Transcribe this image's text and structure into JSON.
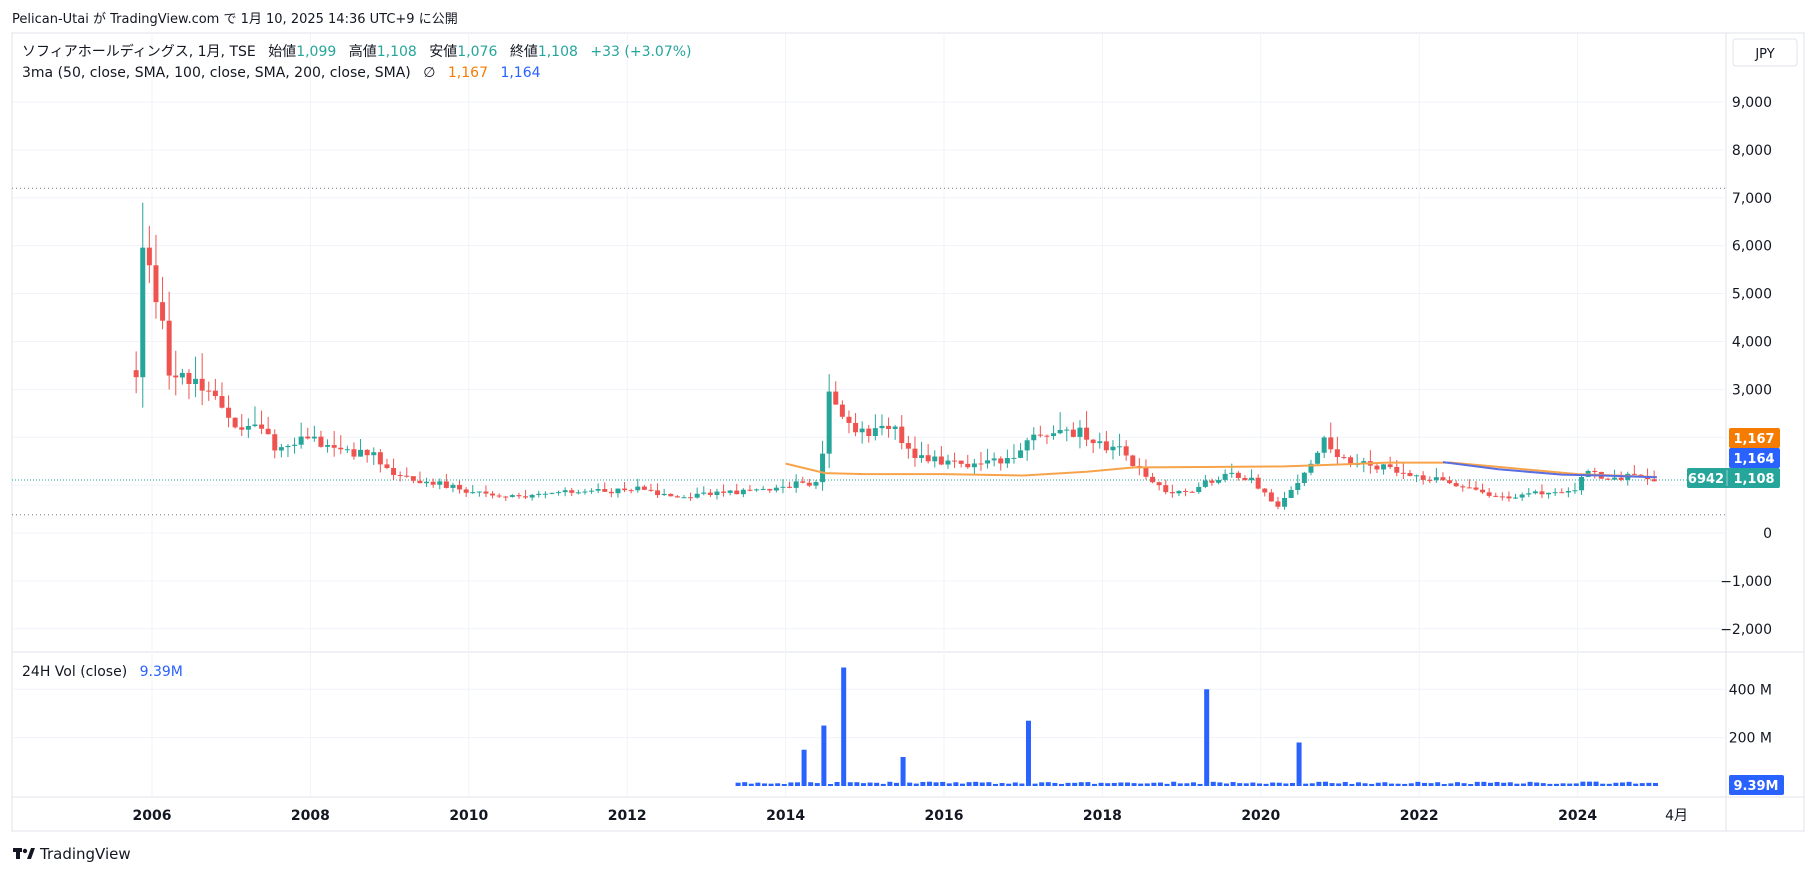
{
  "header": {
    "publish_line": "Pelican-Utai が TradingView.com で 1月 10, 2025 14:36 UTC+9 に公開"
  },
  "legend": {
    "symbol": "ソフィアホールディングス, 1月, TSE",
    "open_label": "始値",
    "open": "1,099",
    "high_label": "高値",
    "high": "1,108",
    "low_label": "安値",
    "low": "1,076",
    "close_label": "終値",
    "close": "1,108",
    "change": "+33 (+3.07%)",
    "ma_title": "3ma (50, close, SMA, 100, close, SMA, 200, close, SMA)",
    "ma_hidden_glyph": "∅",
    "ma1_value": "1,167",
    "ma2_value": "1,164"
  },
  "currency_button": "JPY",
  "price_badges": {
    "ma1": "1,167",
    "ma2": "1,164",
    "last_price": "1,108",
    "countdown": "6942"
  },
  "volume_panel": {
    "label": "24H Vol (close)",
    "value": "9.39M",
    "badge": "9.39M",
    "ticks": [
      "400 M",
      "200 M"
    ]
  },
  "footer": {
    "logo_text": "TradingView"
  },
  "colors": {
    "up": "#26a69a",
    "down": "#ef5350",
    "ma1": "#f7a34a",
    "ma2": "#5b6ee1",
    "volume": "#2962ff",
    "grid": "#f0f3fa",
    "text": "#131722"
  },
  "chart_data": {
    "type": "candlestick",
    "interval": "1M",
    "price_axis": {
      "ticks": [
        "9,000",
        "8,000",
        "7,000",
        "6,000",
        "5,000",
        "4,000",
        "3,000",
        "0",
        "−1,000",
        "−2,000"
      ],
      "range": [
        -2000,
        9000
      ]
    },
    "time_axis": {
      "ticks": [
        "2006",
        "2008",
        "2010",
        "2012",
        "2014",
        "2016",
        "2018",
        "2020",
        "2022",
        "2024",
        "4月"
      ],
      "range": [
        2004.5,
        2025.6
      ]
    },
    "price_keypoints": [
      [
        2005.8,
        3400
      ],
      [
        2005.85,
        6000
      ],
      [
        2005.95,
        5800
      ],
      [
        2006.0,
        4600
      ],
      [
        2006.1,
        4900
      ],
      [
        2006.2,
        3500
      ],
      [
        2006.4,
        3400
      ],
      [
        2006.6,
        3100
      ],
      [
        2006.8,
        2700
      ],
      [
        2007.0,
        2300
      ],
      [
        2007.3,
        2200
      ],
      [
        2007.6,
        1750
      ],
      [
        2007.9,
        1950
      ],
      [
        2008.2,
        1900
      ],
      [
        2008.4,
        1650
      ],
      [
        2008.8,
        1700
      ],
      [
        2009.0,
        1250
      ],
      [
        2009.3,
        1100
      ],
      [
        2009.6,
        1050
      ],
      [
        2009.9,
        920
      ],
      [
        2010.2,
        800
      ],
      [
        2010.6,
        750
      ],
      [
        2010.9,
        780
      ],
      [
        2011.2,
        850
      ],
      [
        2011.5,
        900
      ],
      [
        2011.8,
        880
      ],
      [
        2012.1,
        940
      ],
      [
        2012.4,
        820
      ],
      [
        2012.7,
        760
      ],
      [
        2013.0,
        830
      ],
      [
        2013.4,
        860
      ],
      [
        2013.8,
        900
      ],
      [
        2014.2,
        1050
      ],
      [
        2014.45,
        1050
      ],
      [
        2014.5,
        3050
      ],
      [
        2014.6,
        2600
      ],
      [
        2014.8,
        2200
      ],
      [
        2015.0,
        2100
      ],
      [
        2015.4,
        2150
      ],
      [
        2015.6,
        1650
      ],
      [
        2015.9,
        1500
      ],
      [
        2016.2,
        1450
      ],
      [
        2016.5,
        1450
      ],
      [
        2016.9,
        1600
      ],
      [
        2017.1,
        2000
      ],
      [
        2017.4,
        2150
      ],
      [
        2017.7,
        2100
      ],
      [
        2017.9,
        1900
      ],
      [
        2018.2,
        1750
      ],
      [
        2018.5,
        1250
      ],
      [
        2018.8,
        880
      ],
      [
        2019.1,
        850
      ],
      [
        2019.3,
        1050
      ],
      [
        2019.6,
        1200
      ],
      [
        2019.9,
        1100
      ],
      [
        2020.2,
        550
      ],
      [
        2020.4,
        900
      ],
      [
        2020.6,
        1450
      ],
      [
        2020.8,
        1900
      ],
      [
        2021.0,
        1550
      ],
      [
        2021.3,
        1450
      ],
      [
        2021.5,
        1400
      ],
      [
        2021.8,
        1200
      ],
      [
        2022.1,
        1150
      ],
      [
        2022.4,
        1050
      ],
      [
        2022.7,
        950
      ],
      [
        2023.0,
        720
      ],
      [
        2023.3,
        800
      ],
      [
        2023.6,
        850
      ],
      [
        2023.9,
        850
      ],
      [
        2024.0,
        920
      ],
      [
        2024.1,
        1300
      ],
      [
        2024.3,
        1200
      ],
      [
        2024.5,
        1150
      ],
      [
        2024.7,
        1220
      ],
      [
        2025.0,
        1108
      ]
    ],
    "ma_series": [
      {
        "values": [
          [
            2014.0,
            1450
          ],
          [
            2014.5,
            1250
          ],
          [
            2015.0,
            1230
          ],
          [
            2016.0,
            1230
          ],
          [
            2017.0,
            1200
          ],
          [
            2017.8,
            1280
          ],
          [
            2018.4,
            1370
          ],
          [
            2019.5,
            1380
          ],
          [
            2020.3,
            1390
          ],
          [
            2021.0,
            1430
          ],
          [
            2021.6,
            1470
          ],
          [
            2022.4,
            1470
          ],
          [
            2023.0,
            1380
          ],
          [
            2024.0,
            1230
          ],
          [
            2025.0,
            1167
          ]
        ]
      },
      {
        "values": [
          [
            2022.3,
            1480
          ],
          [
            2023.0,
            1330
          ],
          [
            2023.8,
            1220
          ],
          [
            2024.3,
            1200
          ],
          [
            2025.0,
            1164
          ]
        ]
      }
    ],
    "volume": {
      "unit": "M",
      "range": [
        0,
        470
      ],
      "spikes": [
        [
          2014.25,
          150
        ],
        [
          2014.5,
          250
        ],
        [
          2014.7,
          490
        ],
        [
          2015.45,
          120
        ],
        [
          2017.1,
          270
        ],
        [
          2019.35,
          400
        ],
        [
          2020.45,
          180
        ]
      ],
      "start": 2013.4,
      "end": 2025.0,
      "baseline": 8
    }
  }
}
